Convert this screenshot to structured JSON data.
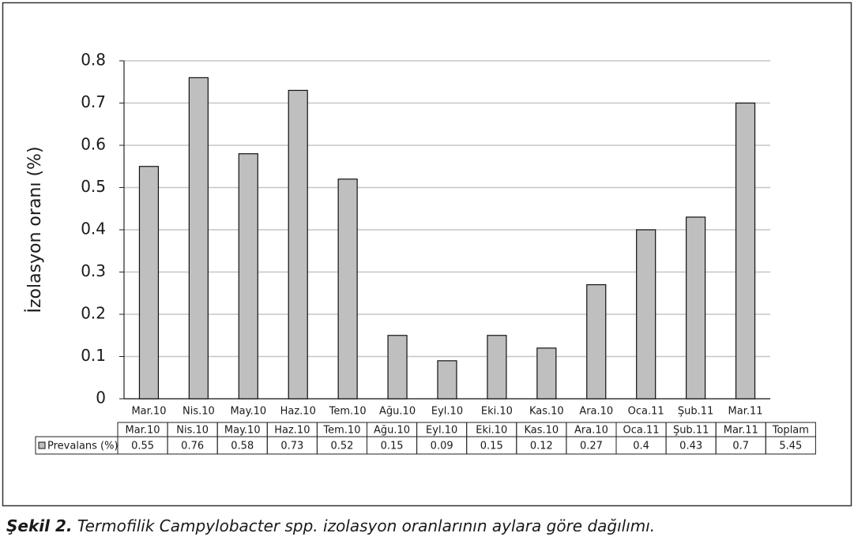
{
  "chart_data": {
    "type": "bar",
    "y_label": "İzolasyon oranı (%)",
    "categories": [
      "Mar.10",
      "Nis.10",
      "May.10",
      "Haz.10",
      "Tem.10",
      "Ağu.10",
      "Eyl.10",
      "Eki.10",
      "Kas.10",
      "Ara.10",
      "Oca.11",
      "Şub.11",
      "Mar.11"
    ],
    "series": [
      {
        "name": "Prevalans (%)",
        "color": "#bfbfbf",
        "values": [
          0.55,
          0.76,
          0.58,
          0.73,
          0.52,
          0.15,
          0.09,
          0.15,
          0.12,
          0.27,
          0.4,
          0.43,
          0.7
        ]
      }
    ],
    "total_label": "Toplam",
    "total": 5.45,
    "ylim": [
      0,
      0.8
    ],
    "yticks": [
      0,
      0.1,
      0.2,
      0.3,
      0.4,
      0.5,
      0.6,
      0.7,
      0.8
    ],
    "grid": true
  },
  "caption": {
    "label": "Şekil 2.",
    "text": "Termofilik Campylobacter spp. izolasyon oranlarının aylara göre dağılımı."
  }
}
